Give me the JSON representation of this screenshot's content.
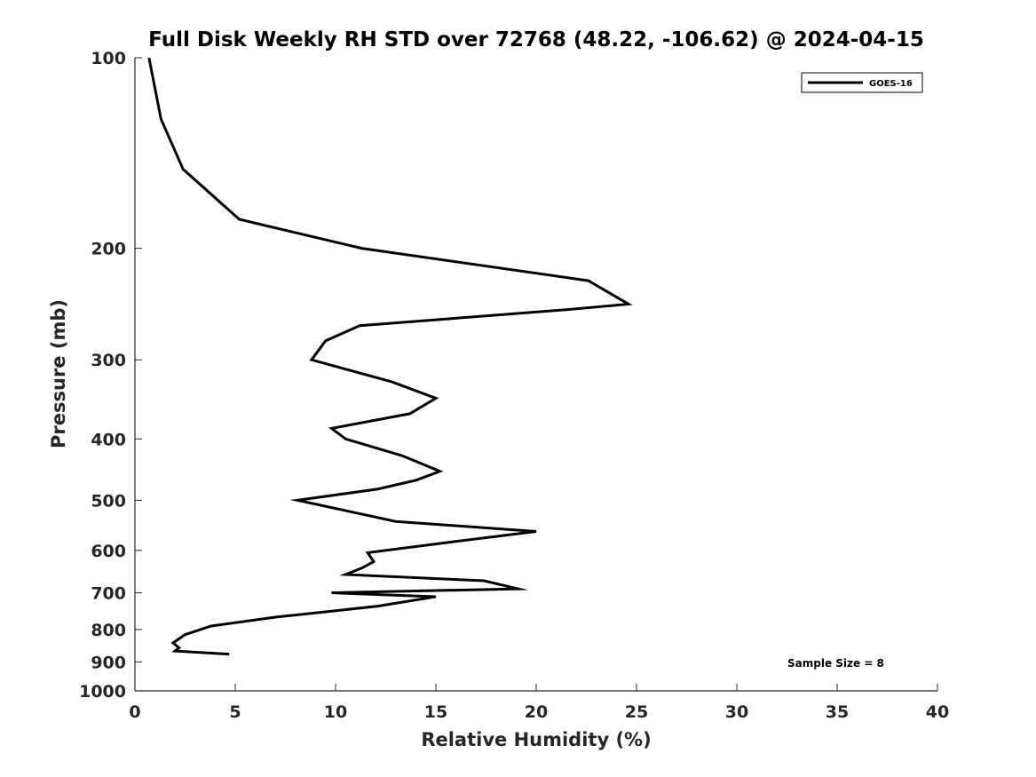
{
  "chart_data": {
    "type": "line",
    "title": "Full Disk Weekly RH STD over 72768 (48.22, -106.62) @ 2024-04-15",
    "xlabel": "Relative Humidity (%)",
    "ylabel": "Pressure (mb)",
    "xlim": [
      0,
      40
    ],
    "ylim": [
      1000,
      100
    ],
    "y_scale": "log",
    "x_ticks": [
      0,
      5,
      10,
      15,
      20,
      25,
      30,
      35,
      40
    ],
    "y_ticks": [
      100,
      200,
      300,
      400,
      500,
      600,
      700,
      800,
      900,
      1000
    ],
    "grid": false,
    "legend_position": "top-right",
    "series": [
      {
        "name": "GOES-16",
        "color": "#000000",
        "points": [
          [
            0.7,
            100
          ],
          [
            1.3,
            125
          ],
          [
            2.4,
            150
          ],
          [
            5.2,
            180
          ],
          [
            11.3,
            200
          ],
          [
            22.6,
            225
          ],
          [
            24.6,
            245
          ],
          [
            21.5,
            250
          ],
          [
            11.2,
            265
          ],
          [
            9.5,
            280
          ],
          [
            8.8,
            300
          ],
          [
            12.8,
            325
          ],
          [
            15.0,
            345
          ],
          [
            13.7,
            365
          ],
          [
            9.8,
            385
          ],
          [
            10.5,
            400
          ],
          [
            13.3,
            425
          ],
          [
            15.2,
            450
          ],
          [
            14.0,
            465
          ],
          [
            12.1,
            480
          ],
          [
            8.1,
            500
          ],
          [
            13.0,
            540
          ],
          [
            20.0,
            560
          ],
          [
            15.2,
            585
          ],
          [
            11.6,
            605
          ],
          [
            11.9,
            625
          ],
          [
            11.3,
            640
          ],
          [
            10.5,
            655
          ],
          [
            17.4,
            670
          ],
          [
            19.1,
            690
          ],
          [
            9.8,
            700
          ],
          [
            15.0,
            710
          ],
          [
            12.1,
            735
          ],
          [
            7.0,
            765
          ],
          [
            3.8,
            790
          ],
          [
            2.5,
            815
          ],
          [
            1.9,
            840
          ],
          [
            2.2,
            855
          ],
          [
            2.0,
            865
          ],
          [
            4.7,
            875
          ]
        ]
      }
    ],
    "annotation": "Sample Size = 8"
  }
}
